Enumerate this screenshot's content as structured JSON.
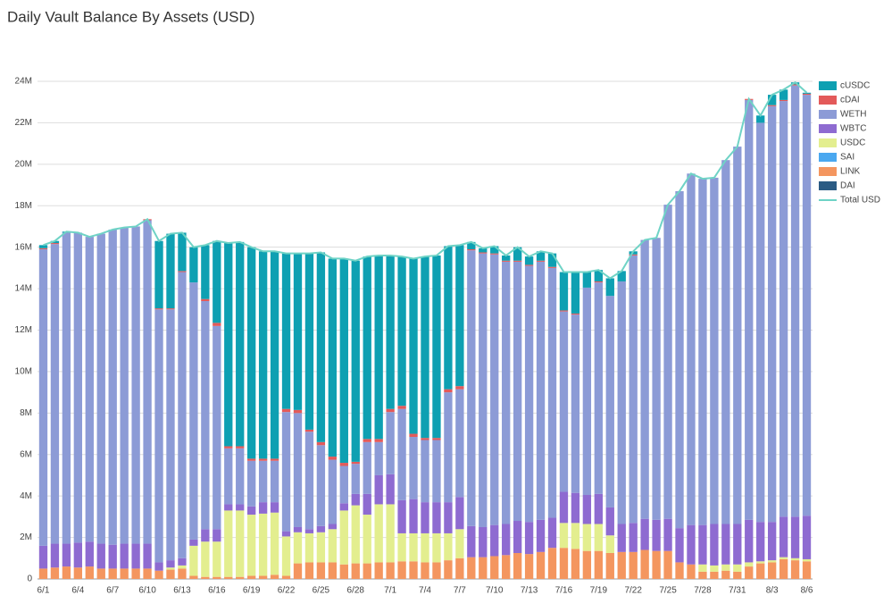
{
  "chart_data": {
    "type": "stacked_bar_line",
    "title": "Daily Vault Balance By Assets (USD)",
    "categories": [
      "6/1",
      null,
      null,
      "6/4",
      null,
      null,
      "6/7",
      null,
      null,
      "6/10",
      null,
      null,
      "6/13",
      null,
      null,
      "6/16",
      null,
      null,
      "6/19",
      null,
      null,
      "6/22",
      null,
      null,
      "6/25",
      null,
      null,
      "6/28",
      null,
      null,
      "7/1",
      null,
      null,
      "7/4",
      null,
      null,
      "7/7",
      null,
      null,
      "7/10",
      null,
      null,
      "7/13",
      null,
      null,
      "7/16",
      null,
      null,
      "7/19",
      null,
      null,
      "7/22",
      null,
      null,
      "7/25",
      null,
      null,
      "7/28",
      null,
      null,
      "7/31",
      null,
      null,
      "8/3",
      null,
      null,
      "8/6"
    ],
    "ylim": [
      0,
      24
    ],
    "yticks": [
      0,
      {
        "value": 2,
        "label": "2M"
      },
      {
        "value": 4,
        "label": "4M"
      },
      {
        "value": 6,
        "label": "6M"
      },
      {
        "value": 8,
        "label": "8M"
      },
      {
        "value": 10,
        "label": "10M"
      },
      {
        "value": 12,
        "label": "12M"
      },
      {
        "value": 14,
        "label": "14M"
      },
      {
        "value": 16,
        "label": "16M"
      },
      {
        "value": 18,
        "label": "18M"
      },
      {
        "value": 20,
        "label": "20M"
      },
      {
        "value": 22,
        "label": "22M"
      },
      {
        "value": 24,
        "label": "24M"
      }
    ],
    "grid": true,
    "legend": "right",
    "series": [
      {
        "name": "DAI",
        "color": "#2b5b84",
        "values": [
          0,
          0,
          0,
          0,
          0,
          0,
          0,
          0,
          0,
          0,
          0,
          0,
          0,
          0,
          0,
          0,
          0,
          0,
          0,
          0,
          0,
          0,
          0,
          0,
          0,
          0,
          0,
          0,
          0,
          0,
          0,
          0,
          0,
          0,
          0,
          0,
          0,
          0,
          0,
          0,
          0,
          0,
          0,
          0,
          0,
          0,
          0,
          0,
          0,
          0,
          0,
          0,
          0,
          0,
          0,
          0,
          0,
          0,
          0,
          0,
          0,
          0,
          0,
          0,
          0,
          0,
          0
        ]
      },
      {
        "name": "LINK",
        "color": "#f4965f",
        "values": [
          0.5,
          0.55,
          0.6,
          0.55,
          0.6,
          0.5,
          0.5,
          0.5,
          0.5,
          0.5,
          0.4,
          0.45,
          0.5,
          0.15,
          0.1,
          0.1,
          0.1,
          0.1,
          0.15,
          0.15,
          0.2,
          0.15,
          0.75,
          0.8,
          0.8,
          0.8,
          0.7,
          0.75,
          0.75,
          0.8,
          0.8,
          0.85,
          0.85,
          0.8,
          0.8,
          0.9,
          1.0,
          1.05,
          1.05,
          1.1,
          1.15,
          1.25,
          1.2,
          1.3,
          1.5,
          1.5,
          1.45,
          1.35,
          1.35,
          1.25,
          1.3,
          1.3,
          1.4,
          1.35,
          1.35,
          0.8,
          0.7,
          0.35,
          0.35,
          0.4,
          0.35,
          0.6,
          0.75,
          0.8,
          0.95,
          0.9,
          0.85
        ]
      },
      {
        "name": "SAI",
        "color": "#4aa8f0",
        "values": [
          0,
          0,
          0,
          0,
          0,
          0,
          0,
          0,
          0,
          0,
          0,
          0,
          0,
          0,
          0,
          0,
          0,
          0,
          0,
          0,
          0,
          0,
          0,
          0,
          0,
          0,
          0,
          0,
          0,
          0,
          0,
          0,
          0,
          0,
          0,
          0,
          0,
          0,
          0,
          0,
          0,
          0,
          0,
          0,
          0,
          0,
          0,
          0,
          0,
          0,
          0,
          0,
          0,
          0,
          0,
          0,
          0,
          0,
          0,
          0,
          0,
          0,
          0,
          0,
          0,
          0,
          0
        ]
      },
      {
        "name": "USDC",
        "color": "#e3ee8f",
        "values": [
          0,
          0,
          0,
          0,
          0,
          0,
          0,
          0,
          0,
          0,
          0,
          0.1,
          0.15,
          1.45,
          1.7,
          1.7,
          3.2,
          3.2,
          2.95,
          3.0,
          3.0,
          1.9,
          1.5,
          1.4,
          1.45,
          1.6,
          2.6,
          2.8,
          2.35,
          2.8,
          2.8,
          1.35,
          1.35,
          1.4,
          1.4,
          1.3,
          1.4,
          0,
          0,
          0,
          0,
          0,
          0,
          0,
          0,
          1.2,
          1.25,
          1.3,
          1.3,
          0.85,
          0,
          0,
          0,
          0,
          0,
          0,
          0,
          0.35,
          0.3,
          0.3,
          0.35,
          0.2,
          0.1,
          0.1,
          0.1,
          0.1,
          0.1
        ]
      },
      {
        "name": "WBTC",
        "color": "#8e6bd1",
        "values": [
          1.1,
          1.15,
          1.1,
          1.2,
          1.2,
          1.2,
          1.15,
          1.2,
          1.2,
          1.2,
          0.4,
          0.35,
          0.35,
          0.3,
          0.6,
          0.6,
          0.3,
          0.3,
          0.4,
          0.55,
          0.5,
          0.25,
          0.25,
          0.2,
          0.3,
          0.25,
          0.35,
          0.55,
          1.0,
          1.4,
          1.45,
          1.6,
          1.65,
          1.5,
          1.5,
          1.5,
          1.55,
          1.5,
          1.45,
          1.5,
          1.5,
          1.55,
          1.55,
          1.55,
          1.45,
          1.5,
          1.45,
          1.4,
          1.45,
          1.35,
          1.35,
          1.4,
          1.5,
          1.5,
          1.55,
          1.65,
          1.9,
          1.9,
          2.0,
          1.95,
          1.95,
          2.05,
          1.9,
          1.85,
          1.95,
          2.0,
          2.1
        ]
      },
      {
        "name": "WETH",
        "color": "#8c9bd6",
        "values": [
          14.3,
          14.45,
          15.0,
          14.95,
          14.7,
          14.95,
          15.2,
          15.25,
          15.3,
          15.6,
          12.2,
          12.1,
          13.8,
          12.4,
          11.0,
          9.8,
          2.7,
          2.7,
          2.2,
          2.0,
          2.0,
          5.75,
          5.5,
          4.7,
          3.9,
          3.1,
          1.8,
          1.45,
          2.5,
          1.6,
          3.0,
          4.4,
          3.0,
          3.0,
          3.0,
          5.3,
          5.2,
          13.3,
          13.2,
          13.05,
          12.65,
          12.5,
          12.35,
          12.45,
          12.05,
          8.7,
          8.6,
          10.0,
          10.2,
          10.2,
          11.7,
          12.9,
          13.45,
          13.6,
          15.15,
          16.25,
          16.95,
          16.7,
          16.7,
          17.55,
          18.2,
          20.25,
          19.25,
          20.05,
          20.05,
          20.8,
          20.3
        ]
      },
      {
        "name": "cDAI",
        "color": "#e35a5a",
        "values": [
          0.05,
          0.05,
          0,
          0,
          0,
          0,
          0,
          0,
          0,
          0.05,
          0.05,
          0.05,
          0.05,
          0,
          0.1,
          0.15,
          0.1,
          0.1,
          0.1,
          0.1,
          0.1,
          0.15,
          0.15,
          0.1,
          0.15,
          0.15,
          0.15,
          0.1,
          0.15,
          0.15,
          0.15,
          0.15,
          0.15,
          0.1,
          0.1,
          0.15,
          0.15,
          0.05,
          0.05,
          0.05,
          0.05,
          0.05,
          0.05,
          0.05,
          0.05,
          0.05,
          0.05,
          0,
          0.05,
          0,
          0,
          0.05,
          0,
          0,
          0,
          0,
          0,
          0,
          0,
          0,
          0,
          0.05,
          0,
          0.05,
          0.05,
          0.05,
          0.05
        ]
      },
      {
        "name": "cUSDC",
        "color": "#0ea0b2",
        "values": [
          0.15,
          0.1,
          0.05,
          0,
          0,
          0,
          0,
          0,
          0,
          0,
          3.25,
          3.6,
          1.85,
          1.7,
          2.6,
          3.95,
          9.8,
          9.85,
          10.2,
          10.0,
          10.0,
          7.5,
          7.55,
          8.5,
          9.15,
          9.55,
          9.85,
          9.7,
          8.8,
          8.85,
          7.4,
          7.2,
          8.45,
          8.75,
          8.8,
          6.9,
          6.8,
          0.35,
          0.2,
          0.35,
          0.25,
          0.65,
          0.4,
          0.45,
          0.65,
          1.85,
          2.0,
          0.75,
          0.55,
          0.85,
          0.5,
          0.15,
          0,
          0,
          0,
          0,
          0,
          0,
          0,
          0,
          0,
          0,
          0.35,
          0.5,
          0.5,
          0.1,
          0.05
        ]
      }
    ],
    "line": {
      "name": "Total USD",
      "color": "#6fd3c6",
      "values": [
        16.1,
        16.3,
        16.75,
        16.7,
        16.5,
        16.65,
        16.85,
        16.95,
        17.0,
        17.35,
        16.3,
        16.65,
        16.7,
        16.0,
        16.1,
        16.3,
        16.2,
        16.25,
        16.0,
        15.8,
        15.8,
        15.7,
        15.7,
        15.7,
        15.75,
        15.45,
        15.45,
        15.35,
        15.55,
        15.6,
        15.6,
        15.55,
        15.45,
        15.55,
        15.6,
        16.05,
        16.1,
        16.25,
        15.95,
        16.05,
        15.6,
        16.0,
        15.55,
        15.8,
        15.7,
        14.8,
        14.8,
        14.8,
        14.9,
        14.5,
        14.85,
        15.8,
        16.35,
        16.45,
        18.05,
        18.7,
        19.55,
        19.3,
        19.35,
        20.2,
        20.85,
        23.15,
        22.35,
        23.35,
        23.6,
        23.95,
        23.45
      ]
    }
  }
}
